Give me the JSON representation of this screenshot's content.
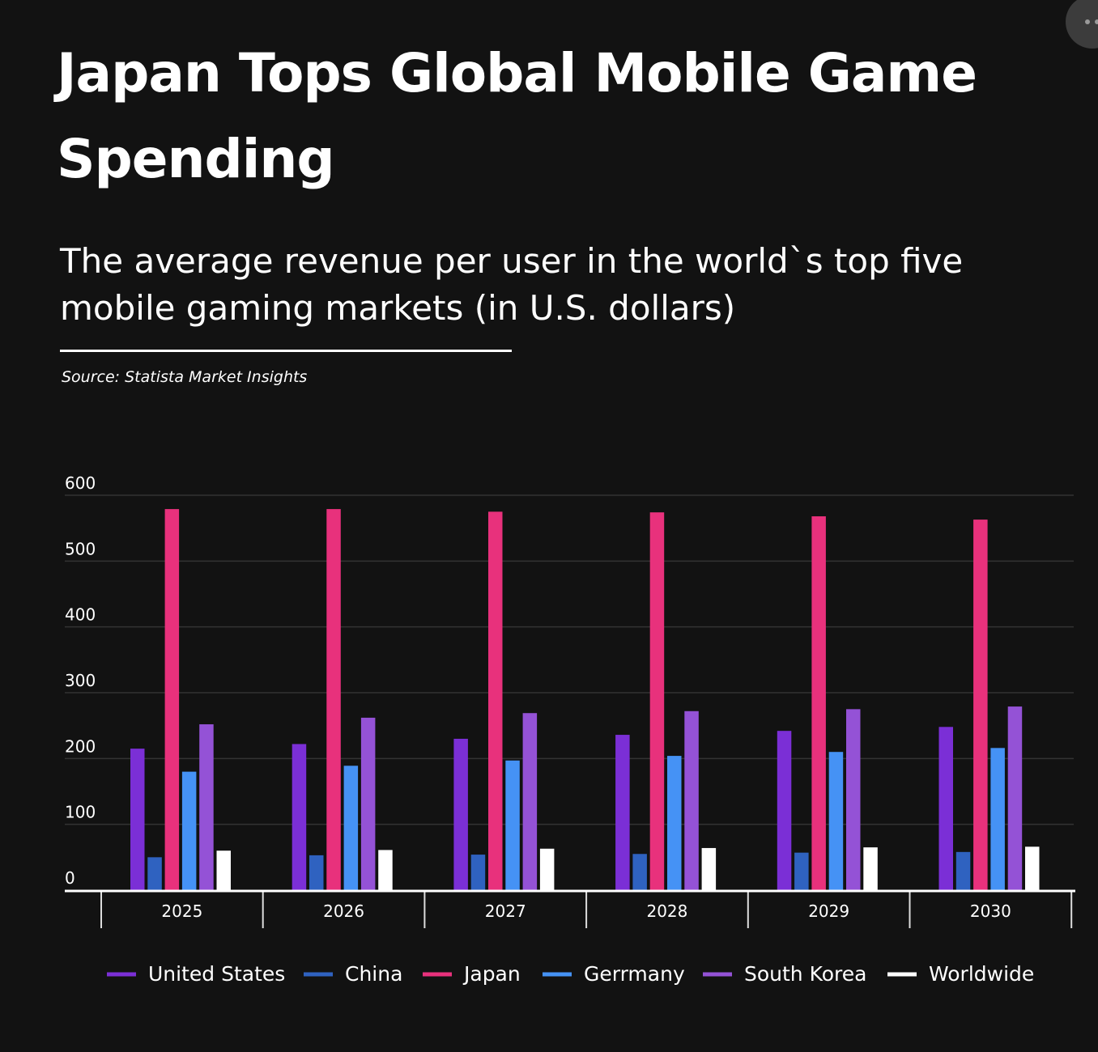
{
  "header": {
    "title": "Japan Tops Global Mobile Game Spending",
    "subtitle": "The average revenue per user in the world`s top five mobile gaming markets (in U.S. dollars)",
    "source": "Source: Statista Market Insights",
    "menu_icon": "more-dots-icon"
  },
  "chart_data": {
    "type": "bar",
    "title": "Japan Tops Global Mobile Game Spending",
    "subtitle": "The average revenue per user in the world`s top five mobile gaming markets (in U.S. dollars)",
    "xlabel": "",
    "ylabel": "",
    "categories": [
      "2025",
      "2026",
      "2027",
      "2028",
      "2029",
      "2030"
    ],
    "ylim": [
      0,
      600
    ],
    "yticks": [
      "0",
      "100",
      "200",
      "300",
      "400",
      "500",
      "600"
    ],
    "grid": true,
    "legend": "bottom",
    "series": [
      {
        "name": "United States",
        "color": "#7b2fd6",
        "values": [
          215,
          222,
          230,
          236,
          242,
          248
        ]
      },
      {
        "name": "China",
        "color": "#2f62c0",
        "values": [
          50,
          53,
          54,
          55,
          57,
          58
        ]
      },
      {
        "name": "Japan",
        "color": "#e8317c",
        "values": [
          579,
          579,
          575,
          574,
          568,
          563
        ]
      },
      {
        "name": "Gerrmany",
        "color": "#4592f5",
        "values": [
          180,
          189,
          197,
          204,
          210,
          216
        ]
      },
      {
        "name": "South Korea",
        "color": "#9452d6",
        "values": [
          252,
          262,
          269,
          272,
          275,
          279
        ]
      },
      {
        "name": "Worldwide",
        "color": "#ffffff",
        "values": [
          60,
          61,
          63,
          64,
          65,
          66
        ]
      }
    ]
  }
}
